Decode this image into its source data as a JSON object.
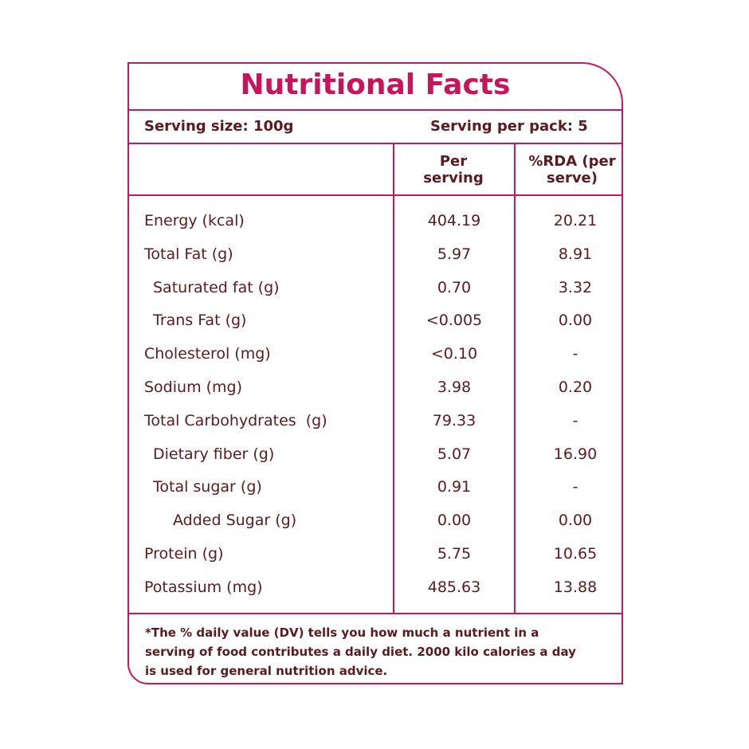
{
  "title": "Nutritional Facts",
  "serving": {
    "size": "Serving size: 100g",
    "per_pack": "Serving per pack: 5"
  },
  "table": {
    "headers": [
      "Per serving",
      "%RDA (per serve)"
    ],
    "rows": [
      [
        "Energy (kcal)",
        "404.19",
        "20.21"
      ],
      [
        "Total Fat (g)",
        "5.97",
        "8.91"
      ],
      [
        "Saturated fat (g)",
        "0.70",
        "3.32"
      ],
      [
        "Trans Fat (g)",
        "<0.005",
        "0.00"
      ],
      [
        "Cholesterol (mg)",
        "<0.10",
        "-"
      ],
      [
        "Sodium (mg)",
        "3.98",
        "0.20"
      ],
      [
        "Total Carbohydrates  (g)",
        "79.33",
        "-"
      ],
      [
        "Dietary fiber (g)",
        "5.07",
        "16.90"
      ],
      [
        "Total sugar (g)",
        "0.91",
        "-"
      ],
      [
        "Added Sugar (g)",
        "0.00",
        "0.00"
      ],
      [
        "Protein (g)",
        "5.75",
        "10.65"
      ],
      [
        "Potassium (mg)",
        "485.63",
        "13.88"
      ]
    ]
  },
  "footnote": "*The % daily value (DV) tells you how much a nutrient in a serving of food contributes a daily diet. 2000 kilo calories a day is used for general nutrition advice."
}
